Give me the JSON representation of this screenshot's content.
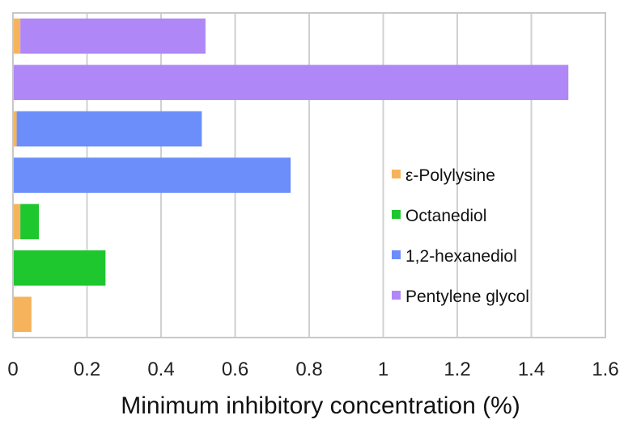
{
  "chart_data": {
    "type": "bar",
    "orientation": "horizontal",
    "stacked": true,
    "xlabel": "Minimum inhibitory concentration (%)",
    "xlim": [
      0,
      1.6
    ],
    "xticks": [
      "0",
      "0.2",
      "0.4",
      "0.6",
      "0.8",
      "1",
      "1.2",
      "1.4",
      "1.6"
    ],
    "grid": "vertical",
    "legend_position": "right",
    "rows": [
      {
        "segments": [
          {
            "series": "ε-Polylysine",
            "value": 0.02
          },
          {
            "series": "Pentylene glycol",
            "value": 0.5
          }
        ]
      },
      {
        "segments": [
          {
            "series": "Pentylene glycol",
            "value": 1.5
          }
        ]
      },
      {
        "segments": [
          {
            "series": "ε-Polylysine",
            "value": 0.01
          },
          {
            "series": "1,2-hexanediol",
            "value": 0.5
          }
        ]
      },
      {
        "segments": [
          {
            "series": "1,2-hexanediol",
            "value": 0.75
          }
        ]
      },
      {
        "segments": [
          {
            "series": "ε-Polylysine",
            "value": 0.02
          },
          {
            "series": "Octanediol",
            "value": 0.05
          }
        ]
      },
      {
        "segments": [
          {
            "series": "Octanediol",
            "value": 0.25
          }
        ]
      },
      {
        "segments": [
          {
            "series": "ε-Polylysine",
            "value": 0.05
          }
        ]
      }
    ],
    "series": [
      {
        "name": "ε-Polylysine",
        "color": "#f6b35c"
      },
      {
        "name": "Octanediol",
        "color": "#1ec72e"
      },
      {
        "name": "1,2-hexanediol",
        "color": "#6b8efb"
      },
      {
        "name": "Pentylene glycol",
        "color": "#b087f7"
      }
    ]
  }
}
